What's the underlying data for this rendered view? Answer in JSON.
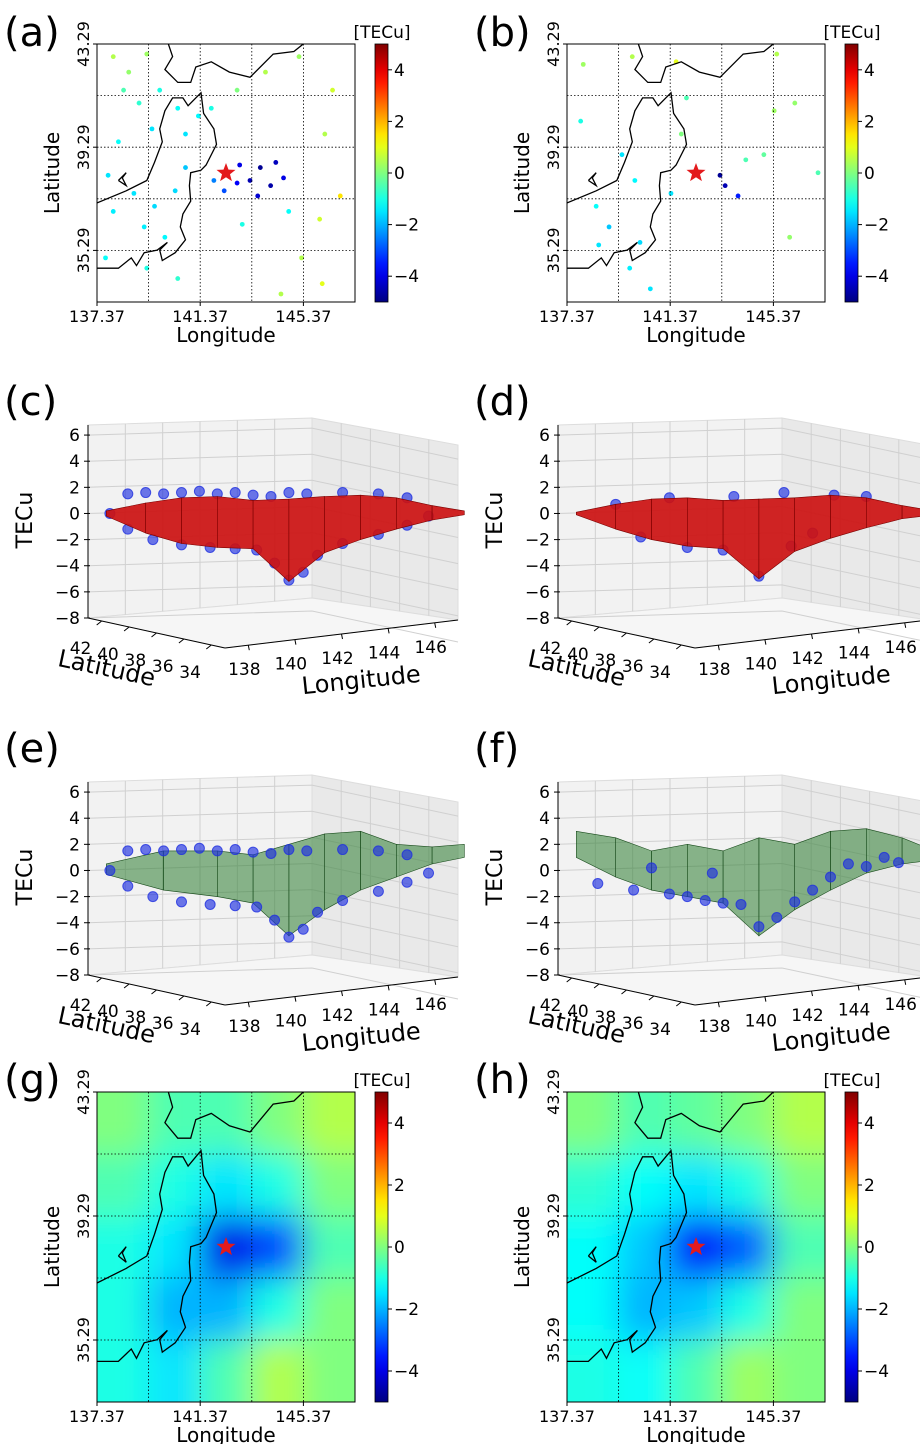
{
  "chart_data": [
    {
      "type": "scatter-map",
      "panel": "(a)",
      "xlabel": "Longitude",
      "ylabel": "Latitude",
      "xlim": [
        137.37,
        147.37
      ],
      "ylim": [
        33.29,
        43.29
      ],
      "xticks": [
        137.37,
        141.37,
        145.37
      ],
      "yticks": [
        35.29,
        39.29,
        43.29
      ],
      "grid_x": [
        139.37,
        141.37,
        143.37,
        145.37
      ],
      "grid_y": [
        35.29,
        37.29,
        39.29,
        41.29
      ],
      "colorbar": {
        "label": "[TECu]",
        "lim": [
          -5,
          5
        ],
        "ticks": [
          {
            "value": -4,
            "label": "−4"
          },
          {
            "value": -2,
            "label": "−2"
          },
          0,
          2,
          4
        ],
        "colormap": "jet"
      },
      "epicenter": {
        "x": 142.37,
        "y": 38.29,
        "color": "#e31a1c"
      },
      "x": [
        138.0,
        138.6,
        139.3,
        138.4,
        139.0,
        139.8,
        140.5,
        139.5,
        140.8,
        141.3,
        138.2,
        137.8,
        138.8,
        139.6,
        140.4,
        140.8,
        139.2,
        140.0,
        138.0,
        137.7,
        139.3,
        140.5,
        141.9,
        142.3,
        142.9,
        143.3,
        143.7,
        144.1,
        143.6,
        144.3,
        142.8,
        144.6,
        141.8,
        142.8,
        143.9,
        145.2,
        146.5,
        146.2,
        146.8,
        146.0,
        145.3,
        146.1,
        144.5,
        143.0,
        144.8
      ],
      "y": [
        42.8,
        42.2,
        42.9,
        41.5,
        41.0,
        41.5,
        40.8,
        40.0,
        39.8,
        40.5,
        39.5,
        38.2,
        37.5,
        37.0,
        37.6,
        38.5,
        36.2,
        35.8,
        36.8,
        35.0,
        34.6,
        34.2,
        38.0,
        37.6,
        38.6,
        38.0,
        38.5,
        37.8,
        37.4,
        38.7,
        37.9,
        38.1,
        40.8,
        41.5,
        42.2,
        42.8,
        41.5,
        39.8,
        37.4,
        36.5,
        35.0,
        34.0,
        33.6,
        36.3,
        36.8
      ],
      "values": [
        0.5,
        0.2,
        0.3,
        -0.5,
        -0.8,
        -1,
        -1.2,
        -1.5,
        -1.5,
        -1.3,
        -1.2,
        -1.5,
        -1.5,
        -1.6,
        -1.6,
        -1.8,
        -1.4,
        -1.3,
        -1.4,
        -1.2,
        -1.0,
        -0.8,
        -2.5,
        -3,
        -4,
        -4.5,
        -4.8,
        -4.6,
        -4.2,
        -4.4,
        -3.8,
        -4,
        -1,
        0,
        0.5,
        0.3,
        0.8,
        0.5,
        1.5,
        0.8,
        0.5,
        1,
        0.5,
        -1,
        -1.2
      ]
    },
    {
      "type": "scatter-map",
      "panel": "(b)",
      "xlabel": "Longitude",
      "ylabel": "Latitude",
      "xlim": [
        137.37,
        147.37
      ],
      "ylim": [
        33.29,
        43.29
      ],
      "xticks": [
        137.37,
        141.37,
        145.37
      ],
      "yticks": [
        35.29,
        39.29,
        43.29
      ],
      "grid_x": [
        139.37,
        141.37,
        143.37,
        145.37
      ],
      "grid_y": [
        35.29,
        37.29,
        39.29,
        41.29
      ],
      "colorbar": {
        "label": "[TECu]",
        "lim": [
          -5,
          5
        ],
        "ticks": [
          {
            "value": -4,
            "label": "−4"
          },
          {
            "value": -2,
            "label": "−2"
          },
          0,
          2,
          4
        ],
        "colormap": "jet"
      },
      "epicenter": {
        "x": 142.37,
        "y": 38.29,
        "color": "#e31a1c"
      },
      "x": [
        138.0,
        139.9,
        141.6,
        145.5,
        137.9,
        139.5,
        140.0,
        138.5,
        139.0,
        140.2,
        139.8,
        140.6,
        141.8,
        142.0,
        143.5,
        143.3,
        144.0,
        144.3,
        145.0,
        146.2,
        147.1,
        145.4,
        146.0,
        141.4,
        138.6
      ],
      "y": [
        42.5,
        42.8,
        42.6,
        42.9,
        40.3,
        39.0,
        38.0,
        37.0,
        36.2,
        35.6,
        34.6,
        33.8,
        39.8,
        41.2,
        37.8,
        38.2,
        37.4,
        38.8,
        39.0,
        41.0,
        38.3,
        40.7,
        35.8,
        37.5,
        35.5
      ],
      "values": [
        0.3,
        0.5,
        1,
        0.5,
        -1,
        -1.5,
        -1.3,
        -1.2,
        -1.8,
        -1.6,
        -1.4,
        -1.5,
        0,
        -0.5,
        -4.5,
        -4.8,
        -3.5,
        -0.5,
        -0.3,
        0.2,
        -0.5,
        0.3,
        0.2,
        -1.5,
        -1.5
      ]
    },
    {
      "type": "surface3d",
      "panel": "(c)",
      "xlabel": "Longitude",
      "ylabel": "Latitude",
      "zlabel": "TECu",
      "xlim": [
        137,
        147
      ],
      "ylim": [
        43,
        33
      ],
      "zlim": [
        -8,
        7
      ],
      "xticks": [
        138,
        140,
        142,
        144,
        146
      ],
      "yticks": [
        42,
        40,
        38,
        36,
        34
      ],
      "zticks": [
        {
          "value": -8,
          "label": "−8"
        },
        {
          "value": -6,
          "label": "−6"
        },
        {
          "value": -4,
          "label": "−4"
        },
        {
          "value": -2,
          "label": "−2"
        },
        0,
        2,
        4,
        6
      ],
      "surface_color": "#cc1111",
      "point_color": "#1f2fe0",
      "surface": {
        "lon": [
          137.4,
          138.5,
          139.5,
          140.5,
          141.5,
          142.5,
          143.5,
          144.5,
          145.5,
          146.5,
          147.4
        ],
        "top": [
          0.2,
          0.8,
          1.2,
          1.3,
          1.0,
          1.1,
          1.3,
          1.4,
          1.2,
          0.6,
          0.2
        ],
        "bottom": [
          -0.2,
          -1.5,
          -2.3,
          -2.6,
          -2.7,
          -5.2,
          -3.0,
          -2.0,
          -1.2,
          -0.5,
          -0.1
        ]
      },
      "points": {
        "lon": [
          137.5,
          138,
          138.5,
          139,
          139.5,
          140,
          140.5,
          141,
          141.5,
          142,
          142.5,
          143,
          144,
          145,
          145.8,
          138,
          138.7,
          139.5,
          140.3,
          141,
          141.6,
          142.1,
          142.5,
          142.9,
          143.3,
          144,
          145,
          145.8,
          146.4
        ],
        "tec": [
          0,
          1.5,
          1.6,
          1.5,
          1.6,
          1.7,
          1.5,
          1.6,
          1.4,
          1.3,
          1.6,
          1.5,
          1.6,
          1.5,
          1.2,
          -1.2,
          -2,
          -2.4,
          -2.6,
          -2.7,
          -2.8,
          -3.8,
          -5.1,
          -4.5,
          -3.2,
          -2.3,
          -1.6,
          -0.9,
          -0.2
        ]
      }
    },
    {
      "type": "surface3d",
      "panel": "(d)",
      "xlabel": "Longitude",
      "ylabel": "Latitude",
      "zlabel": "TECu",
      "xlim": [
        137,
        147
      ],
      "ylim": [
        43,
        33
      ],
      "zlim": [
        -8,
        7
      ],
      "xticks": [
        138,
        140,
        142,
        144,
        146
      ],
      "yticks": [
        42,
        40,
        38,
        36,
        34
      ],
      "zticks": [
        {
          "value": -8,
          "label": "−8"
        },
        {
          "value": -6,
          "label": "−6"
        },
        {
          "value": -4,
          "label": "−4"
        },
        {
          "value": -2,
          "label": "−2"
        },
        0,
        2,
        4,
        6
      ],
      "surface_color": "#cc1111",
      "point_color": "#1f2fe0",
      "surface": {
        "lon": [
          137.4,
          138.5,
          139.5,
          140.5,
          141.5,
          142.5,
          143.5,
          144.5,
          145.5,
          146.5,
          147.4
        ],
        "top": [
          0.1,
          0.7,
          1.1,
          1.2,
          1.0,
          1.1,
          1.2,
          1.4,
          1.2,
          0.6,
          0.2
        ],
        "bottom": [
          -0.1,
          -1.2,
          -2.0,
          -2.5,
          -2.7,
          -5.0,
          -2.9,
          -1.9,
          -1.1,
          -0.4,
          -0.1
        ]
      },
      "points": {
        "lon": [
          138.5,
          140,
          141.8,
          143.2,
          144.6,
          145.5,
          139.2,
          140.5,
          141.5,
          142.5,
          143.4,
          144
        ],
        "tec": [
          0.7,
          1.2,
          1.3,
          1.6,
          1.4,
          1.3,
          -1.8,
          -2.6,
          -2.8,
          -4.8,
          -2.5,
          -1.5
        ]
      }
    },
    {
      "type": "surface3d",
      "panel": "(e)",
      "xlabel": "Longitude",
      "ylabel": "Latitude",
      "zlabel": "TECu",
      "xlim": [
        137,
        147
      ],
      "ylim": [
        43,
        33
      ],
      "zlim": [
        -8,
        7
      ],
      "xticks": [
        138,
        140,
        142,
        144,
        146
      ],
      "yticks": [
        42,
        40,
        38,
        36,
        34
      ],
      "zticks": [
        {
          "value": -8,
          "label": "−8"
        },
        {
          "value": -6,
          "label": "−6"
        },
        {
          "value": -4,
          "label": "−4"
        },
        {
          "value": -2,
          "label": "−2"
        },
        0,
        2,
        4,
        6
      ],
      "surface_color": "#2e7d32",
      "point_color": "#1f2fe0",
      "surface": {
        "lon": [
          137.4,
          139,
          140.5,
          141.5,
          142.5,
          143.5,
          144.5,
          145.5,
          146.5,
          147.4
        ],
        "top": [
          0.5,
          1.5,
          1.5,
          1.2,
          2,
          2.8,
          3,
          2,
          1.8,
          2
        ],
        "bottom": [
          -0.3,
          -1.5,
          -2,
          -2.5,
          -5,
          -3,
          -1.5,
          -0.5,
          0.5,
          1
        ]
      },
      "points": {
        "lon": [
          137.5,
          138,
          138.5,
          139,
          139.5,
          140,
          140.5,
          141,
          141.5,
          142,
          142.5,
          143,
          144,
          145,
          145.8,
          138,
          138.7,
          139.5,
          140.3,
          141,
          141.6,
          142.1,
          142.5,
          142.9,
          143.3,
          144,
          145,
          145.8,
          146.4
        ],
        "tec": [
          0,
          1.5,
          1.6,
          1.5,
          1.6,
          1.7,
          1.5,
          1.6,
          1.4,
          1.3,
          1.6,
          1.5,
          1.6,
          1.5,
          1.2,
          -1.2,
          -2,
          -2.4,
          -2.6,
          -2.7,
          -2.8,
          -3.8,
          -5.1,
          -4.5,
          -3.2,
          -2.3,
          -1.6,
          -0.9,
          -0.2
        ]
      }
    },
    {
      "type": "surface3d",
      "panel": "(f)",
      "xlabel": "Longitude",
      "ylabel": "Latitude",
      "zlabel": "TECu",
      "xlim": [
        137,
        147
      ],
      "ylim": [
        43,
        33
      ],
      "zlim": [
        -8,
        7
      ],
      "xticks": [
        138,
        140,
        142,
        144,
        146
      ],
      "yticks": [
        42,
        40,
        38,
        36,
        34
      ],
      "zticks": [
        {
          "value": -8,
          "label": "−8"
        },
        {
          "value": -6,
          "label": "−6"
        },
        {
          "value": -4,
          "label": "−4"
        },
        {
          "value": -2,
          "label": "−2"
        },
        0,
        2,
        4,
        6
      ],
      "surface_color": "#2e7d32",
      "point_color": "#1f2fe0",
      "surface": {
        "lon": [
          137.4,
          138.5,
          139.5,
          140.5,
          141.5,
          142.5,
          143.5,
          144.5,
          145.5,
          146.5,
          147.4
        ],
        "top": [
          3,
          2.5,
          1.5,
          2,
          1.5,
          2.5,
          2,
          3,
          3.2,
          2.5,
          1.5
        ],
        "bottom": [
          1,
          -0.5,
          -1.5,
          -2,
          -2.5,
          -5,
          -3,
          -1.5,
          -0.2,
          0.5,
          0.8
        ]
      },
      "points": {
        "lon": [
          138,
          139,
          140,
          140.5,
          141,
          141.5,
          142,
          142.5,
          143,
          143.5,
          144,
          144.5,
          145,
          145.5,
          146,
          146.4,
          139.5,
          141.2
        ],
        "tec": [
          -1,
          -1.5,
          -1.8,
          -2,
          -2.3,
          -2.5,
          -2.6,
          -4.3,
          -3.6,
          -2.4,
          -1.5,
          -0.5,
          0.5,
          0.3,
          1,
          0.6,
          0.2,
          -0.2
        ]
      }
    },
    {
      "type": "heatmap",
      "panel": "(g)",
      "xlabel": "Longitude",
      "ylabel": "Latitude",
      "xlim": [
        137.37,
        147.37
      ],
      "ylim": [
        33.29,
        43.29
      ],
      "xticks": [
        137.37,
        141.37,
        145.37
      ],
      "yticks": [
        35.29,
        39.29,
        43.29
      ],
      "grid_x": [
        139.37,
        141.37,
        143.37,
        145.37
      ],
      "grid_y": [
        35.29,
        37.29,
        39.29,
        41.29
      ],
      "colorbar": {
        "label": "[TECu]",
        "lim": [
          -5,
          5
        ],
        "ticks": [
          {
            "value": -4,
            "label": "−4"
          },
          {
            "value": -2,
            "label": "−2"
          },
          0,
          2,
          4
        ],
        "colormap": "jet"
      },
      "epicenter": {
        "x": 142.37,
        "y": 38.29,
        "color": "#e31a1c"
      },
      "x": [
        138.37,
        140.37,
        142.37,
        144.37,
        146.37
      ],
      "y": [
        42.29,
        40.29,
        38.29,
        36.29,
        34.29
      ],
      "values": [
        [
          0,
          -0.5,
          -0.5,
          0,
          0.5
        ],
        [
          -0.5,
          -1,
          -1.5,
          -1,
          0
        ],
        [
          -1,
          -1.5,
          -4,
          -3,
          -0.5
        ],
        [
          -1,
          -2,
          -2,
          -1,
          0
        ],
        [
          -1,
          -1.5,
          -0.5,
          0.5,
          0
        ]
      ]
    },
    {
      "type": "heatmap",
      "panel": "(h)",
      "xlabel": "Longitude",
      "ylabel": "Latitude",
      "xlim": [
        137.37,
        147.37
      ],
      "ylim": [
        33.29,
        43.29
      ],
      "xticks": [
        137.37,
        141.37,
        145.37
      ],
      "yticks": [
        35.29,
        39.29,
        43.29
      ],
      "grid_x": [
        139.37,
        141.37,
        143.37,
        145.37
      ],
      "grid_y": [
        35.29,
        37.29,
        39.29,
        41.29
      ],
      "colorbar": {
        "label": "[TECu]",
        "lim": [
          -5,
          5
        ],
        "ticks": [
          {
            "value": -4,
            "label": "−4"
          },
          {
            "value": -2,
            "label": "−2"
          },
          0,
          2,
          4
        ],
        "colormap": "jet"
      },
      "epicenter": {
        "x": 142.37,
        "y": 38.29,
        "color": "#e31a1c"
      },
      "x": [
        138.37,
        140.37,
        142.37,
        144.37,
        146.37
      ],
      "y": [
        42.29,
        40.29,
        38.29,
        36.29,
        34.29
      ],
      "values": [
        [
          0,
          -0.5,
          -0.3,
          0,
          0.5
        ],
        [
          -0.8,
          -1.2,
          -1.5,
          -1,
          0
        ],
        [
          -1.2,
          -1.8,
          -3.8,
          -2.8,
          -0.5
        ],
        [
          -1.2,
          -2,
          -1.8,
          -1,
          0
        ],
        [
          -1,
          -1.2,
          -0.5,
          0.3,
          0
        ]
      ]
    }
  ]
}
